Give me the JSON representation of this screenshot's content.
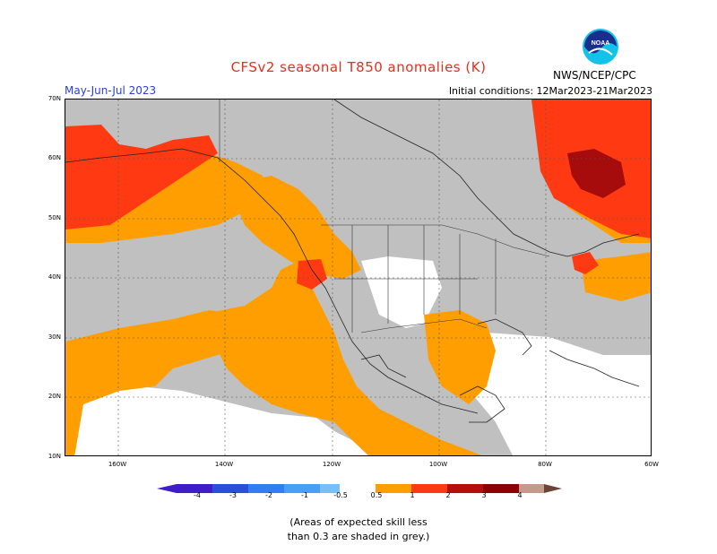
{
  "header": {
    "title": "CFSv2 seasonal T850 anomalies (K)",
    "season": "May-Jun-Jul 2023",
    "initial_conditions": "Initial conditions: 12Mar2023-21Mar2023",
    "org": "NWS/NCEP/CPC",
    "logo_text": "NOAA"
  },
  "axes": {
    "lat_labels": [
      "70N",
      "60N",
      "50N",
      "40N",
      "30N",
      "20N",
      "10N"
    ],
    "lon_labels": [
      "160W",
      "140W",
      "120W",
      "100W",
      "80W",
      "60W"
    ]
  },
  "colorbar": {
    "labels": [
      "-4",
      "-3",
      "-2",
      "-1",
      "-0.5",
      "0.5",
      "1",
      "2",
      "3",
      "4"
    ],
    "colors": [
      "#3f1ec8",
      "#2c4fd8",
      "#2f7ff0",
      "#46a0f5",
      "#78bff7",
      "#ffffff",
      "#ff9e00",
      "#ff3a12",
      "#b40e0e",
      "#8b0000",
      "#c49a8c",
      "#6b4437"
    ]
  },
  "legend_colors": {
    "grey_low_skill": "#c0c0c0",
    "orange": "#ff9e00",
    "red": "#ff3a12",
    "darkred": "#a60c0c",
    "white": "#ffffff"
  },
  "note": {
    "line1": "(Areas of expected skill less",
    "line2": "than 0.3 are shaded in grey.)"
  }
}
